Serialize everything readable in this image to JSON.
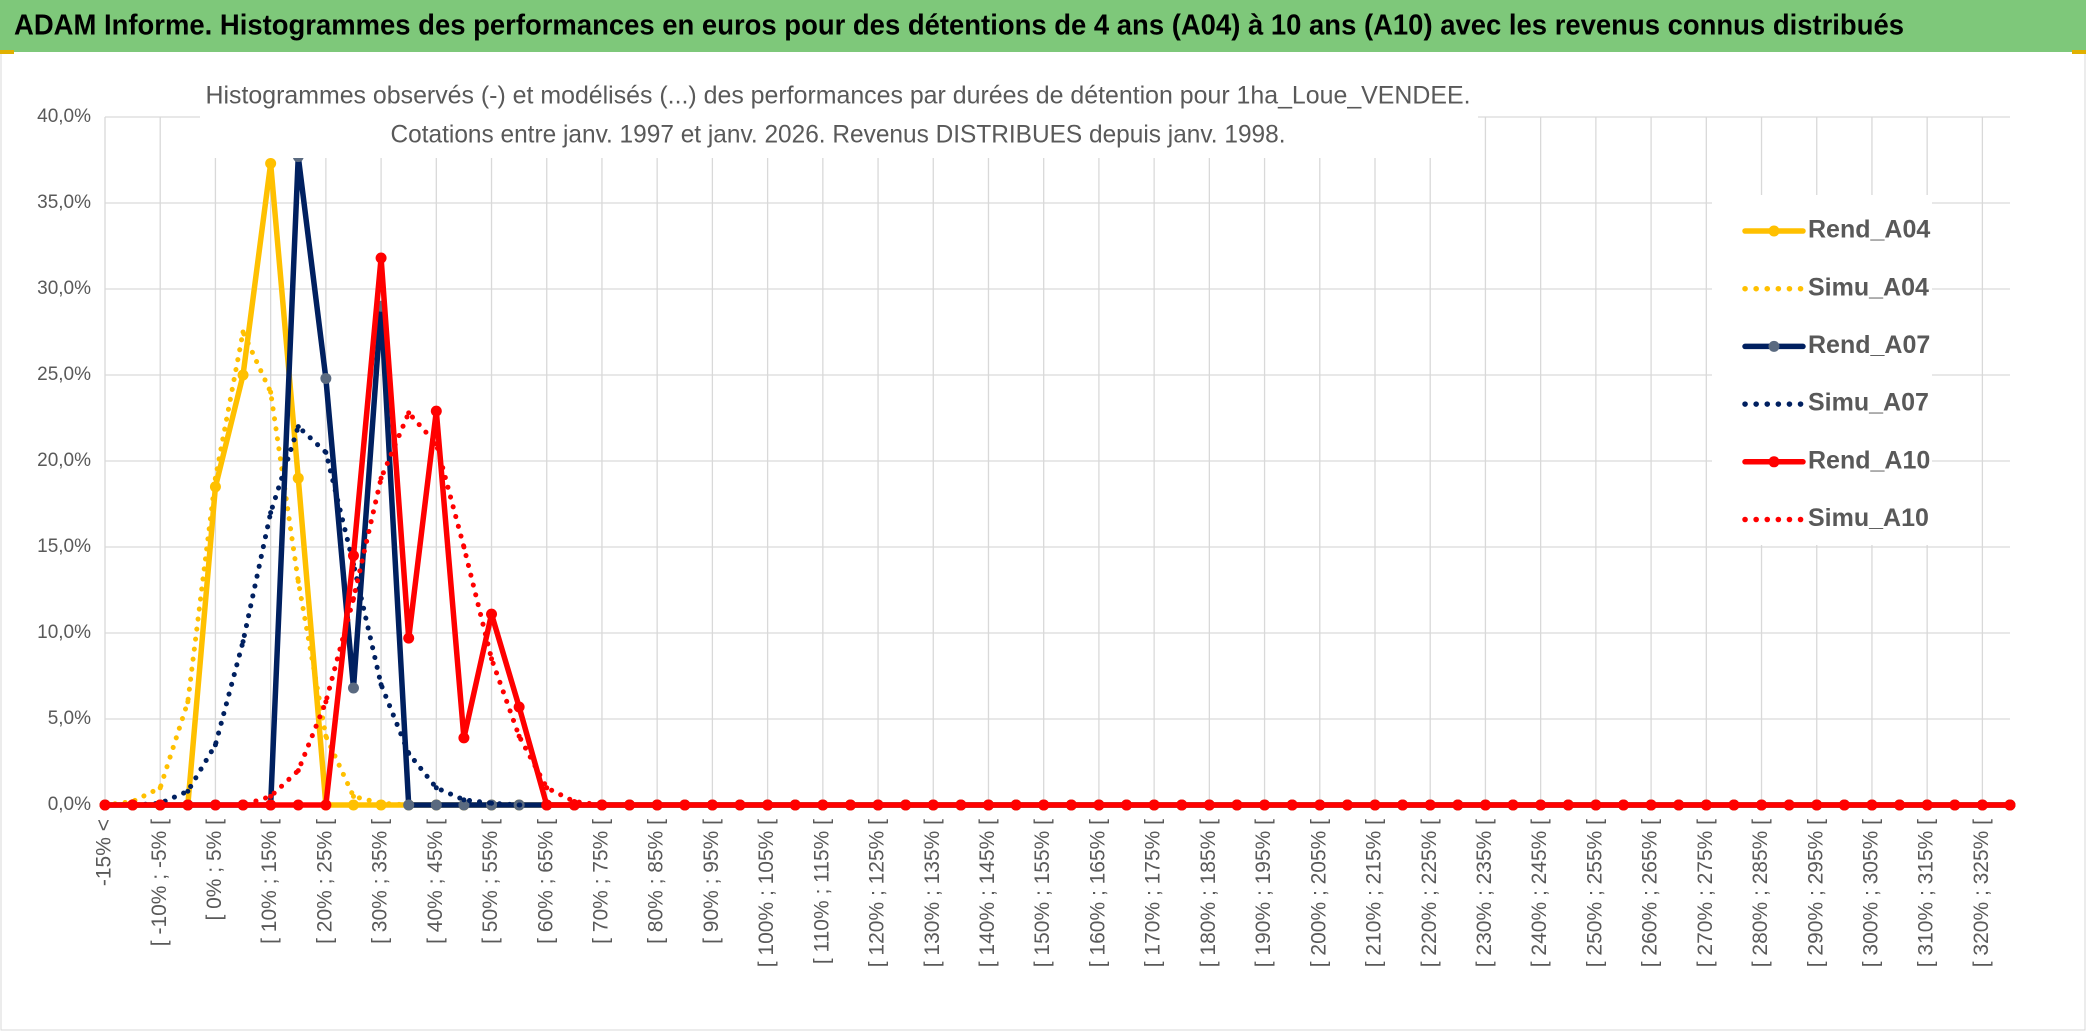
{
  "chart_data": {
    "type": "line",
    "title": "ADAM Informe. Histogrammes des performances en euros pour des détentions de 4 ans (A04) à 10 ans (A10) avec les revenus connus distribués",
    "subtitle": [
      "Histogrammes observés (-) et modélisés (...) des performances par durées de détention pour 1ha_Loue_VENDEE.",
      "Cotations entre janv. 1997 et janv. 2026. Revenus DISTRIBUES depuis janv. 1998."
    ],
    "categories": [
      "-15% <",
      null,
      "[ -10% ; -5% [",
      null,
      "[ 0% ; 5% [",
      null,
      "[ 10% ; 15% [",
      null,
      "[ 20% ; 25% [",
      null,
      "[ 30% ; 35% [",
      null,
      "[ 40% ; 45% [",
      null,
      "[ 50% ; 55% [",
      null,
      "[ 60% ; 65% [",
      null,
      "[ 70% ; 75% [",
      null,
      "[ 80% ; 85% [",
      null,
      "[ 90% ; 95% [",
      null,
      "[ 100% ; 105% [",
      null,
      "[ 110% ; 115% [",
      null,
      "[ 120% ; 125% [",
      null,
      "[ 130% ; 135% [",
      null,
      "[ 140% ; 145% [",
      null,
      "[ 150% ; 155% [",
      null,
      "[ 160% ; 165% [",
      null,
      "[ 170% ; 175% [",
      null,
      "[ 180% ; 185% [",
      null,
      "[ 190% ; 195% [",
      null,
      "[ 200% ; 205% [",
      null,
      "[ 210% ; 215% [",
      null,
      "[ 220% ; 225% [",
      null,
      "[ 230% ; 235% [",
      null,
      "[ 240% ; 245% [",
      null,
      "[ 250% ; 255% [",
      null,
      "[ 260% ; 265% [",
      null,
      "[ 270% ; 275% [",
      null,
      "[ 280% ; 285% [",
      null,
      "[ 290% ; 295% [",
      null,
      "[ 300% ; 305% [",
      null,
      "[ 310% ; 315% [",
      null,
      "[ 320% ; 325% [",
      null
    ],
    "series": [
      {
        "name": "Rend_A04",
        "color": "#ffc000",
        "style": "solid",
        "values": [
          0,
          0,
          0,
          0,
          18.5,
          25,
          37.3,
          19,
          0,
          0,
          0,
          0,
          0,
          0,
          0,
          0,
          0,
          0,
          0,
          0,
          0,
          0,
          0,
          0,
          0,
          0,
          0,
          0,
          0,
          0,
          0,
          0,
          0,
          0,
          0,
          0,
          0,
          0,
          0,
          0,
          0,
          0,
          0,
          0,
          0,
          0,
          0,
          0,
          0,
          0,
          0,
          0,
          0,
          0,
          0,
          0,
          0,
          0,
          0,
          0,
          0,
          0,
          0,
          0,
          0,
          0,
          0,
          0,
          0,
          0
        ]
      },
      {
        "name": "Simu_A04",
        "color": "#ffc000",
        "style": "dotted",
        "values": [
          0,
          0.2,
          1,
          6,
          19,
          27.5,
          24,
          13,
          4,
          0.5,
          0.1,
          0,
          0,
          0,
          0,
          0,
          0,
          0,
          0,
          0,
          0,
          0,
          0,
          0,
          0,
          0,
          0,
          0,
          0,
          0,
          0,
          0,
          0,
          0,
          0,
          0,
          0,
          0,
          0,
          0,
          0,
          0,
          0,
          0,
          0,
          0,
          0,
          0,
          0,
          0,
          0,
          0,
          0,
          0,
          0,
          0,
          0,
          0,
          0,
          0,
          0,
          0,
          0,
          0,
          0,
          0,
          0,
          0,
          0,
          0
        ]
      },
      {
        "name": "Rend_A07",
        "color": "#002060",
        "style": "solid",
        "marker": "#5a6a80",
        "values": [
          0,
          0,
          0,
          0,
          0,
          0,
          0,
          37.7,
          24.8,
          6.8,
          29,
          0,
          0,
          0,
          0,
          0,
          0,
          0,
          0,
          0,
          0,
          0,
          0,
          0,
          0,
          0,
          0,
          0,
          0,
          0,
          0,
          0,
          0,
          0,
          0,
          0,
          0,
          0,
          0,
          0,
          0,
          0,
          0,
          0,
          0,
          0,
          0,
          0,
          0,
          0,
          0,
          0,
          0,
          0,
          0,
          0,
          0,
          0,
          0,
          0,
          0,
          0,
          0,
          0,
          0,
          0,
          0,
          0,
          0,
          0
        ]
      },
      {
        "name": "Simu_A07",
        "color": "#002060",
        "style": "dotted",
        "values": [
          0,
          0,
          0.1,
          0.8,
          3.5,
          9.5,
          17,
          22,
          20.5,
          14,
          7,
          3,
          1,
          0.3,
          0.1,
          0,
          0,
          0,
          0,
          0,
          0,
          0,
          0,
          0,
          0,
          0,
          0,
          0,
          0,
          0,
          0,
          0,
          0,
          0,
          0,
          0,
          0,
          0,
          0,
          0,
          0,
          0,
          0,
          0,
          0,
          0,
          0,
          0,
          0,
          0,
          0,
          0,
          0,
          0,
          0,
          0,
          0,
          0,
          0,
          0,
          0,
          0,
          0,
          0,
          0,
          0,
          0,
          0,
          0,
          0
        ]
      },
      {
        "name": "Rend_A10",
        "color": "#ff0000",
        "style": "solid",
        "values": [
          0,
          0,
          0,
          0,
          0,
          0,
          0,
          0,
          0,
          14.5,
          31.8,
          9.7,
          22.9,
          3.9,
          11.1,
          5.7,
          0,
          0,
          0,
          0,
          0,
          0,
          0,
          0,
          0,
          0,
          0,
          0,
          0,
          0,
          0,
          0,
          0,
          0,
          0,
          0,
          0,
          0,
          0,
          0,
          0,
          0,
          0,
          0,
          0,
          0,
          0,
          0,
          0,
          0,
          0,
          0,
          0,
          0,
          0,
          0,
          0,
          0,
          0,
          0,
          0,
          0,
          0,
          0,
          0,
          0,
          0,
          0,
          0,
          0
        ]
      },
      {
        "name": "Simu_A10",
        "color": "#ff0000",
        "style": "dotted",
        "values": [
          0,
          0,
          0,
          0,
          0,
          0,
          0.5,
          2,
          6,
          12,
          19,
          22.8,
          21,
          15,
          8.5,
          4,
          1,
          0.2,
          0,
          0,
          0,
          0,
          0,
          0,
          0,
          0,
          0,
          0,
          0,
          0,
          0,
          0,
          0,
          0,
          0,
          0,
          0,
          0,
          0,
          0,
          0,
          0,
          0,
          0,
          0,
          0,
          0,
          0,
          0,
          0,
          0,
          0,
          0,
          0,
          0,
          0,
          0,
          0,
          0,
          0,
          0,
          0,
          0,
          0,
          0,
          0,
          0,
          0,
          0,
          0
        ]
      }
    ],
    "ylim": [
      0,
      40
    ],
    "yticks": [
      {
        "value": 0,
        "label": "0,0%"
      },
      {
        "value": 5,
        "label": "5,0%"
      },
      {
        "value": 10,
        "label": "10,0%"
      },
      {
        "value": 15,
        "label": "15,0%"
      },
      {
        "value": 20,
        "label": "20,0%"
      },
      {
        "value": 25,
        "label": "25,0%"
      },
      {
        "value": 30,
        "label": "30,0%"
      },
      {
        "value": 35,
        "label": "35,0%"
      },
      {
        "value": 40,
        "label": "40,0%"
      }
    ],
    "grid": true,
    "legend": "right"
  }
}
